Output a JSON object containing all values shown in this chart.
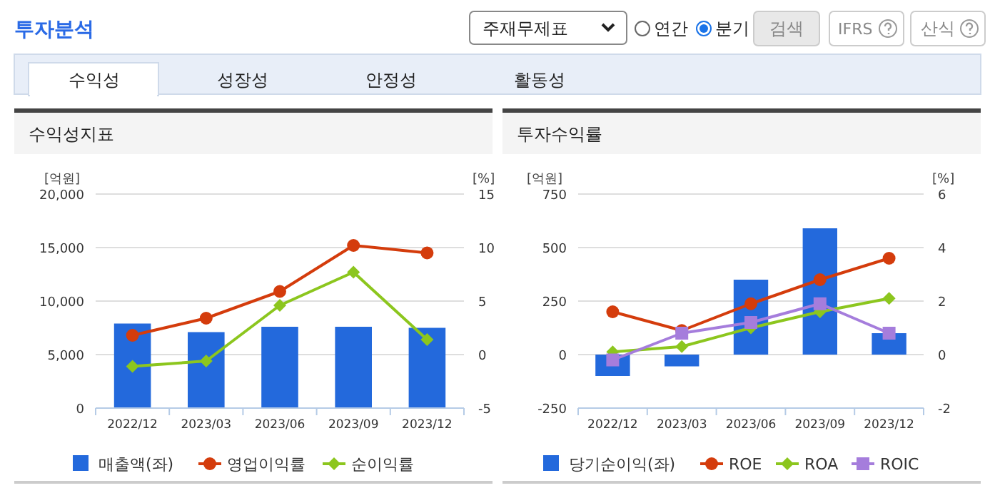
{
  "chart_data": [
    {
      "type": "other",
      "title": "투자분석",
      "annotations": [
        "주재무제표",
        "연간",
        "분기",
        "검색",
        "IFRS",
        "산식",
        "수익성",
        "성장성",
        "안정성",
        "활동성"
      ]
    },
    {
      "type": "bar",
      "title": "수익성지표",
      "ylabel": "[억원]",
      "y2label": "[%]",
      "categories": [
        "2022/12",
        "2023/03",
        "2023/06",
        "2023/09",
        "2023/12"
      ],
      "series": [
        {
          "name": "매출액(좌)",
          "type": "bar",
          "color": "#2369dc",
          "values": [
            7900,
            7100,
            7600,
            7600,
            7500
          ]
        },
        {
          "name": "영업이익률",
          "type": "line",
          "axis": "y2",
          "marker": "circle",
          "color": "#d43c0c",
          "values": [
            1.8,
            3.4,
            5.9,
            10.2,
            9.5
          ]
        },
        {
          "name": "순이익률",
          "type": "line",
          "axis": "y2",
          "marker": "diamond",
          "color": "#8cc61e",
          "values": [
            -1.1,
            -0.6,
            4.6,
            7.7,
            1.4
          ]
        }
      ],
      "ylim": [
        0,
        20000
      ],
      "yticks": [
        0,
        {
          "value": 5000,
          "label": "5,000"
        },
        {
          "value": 10000,
          "label": "10,000"
        },
        {
          "value": 15000,
          "label": "15,000"
        },
        {
          "value": 20000,
          "label": "20,000"
        }
      ],
      "y2lim": [
        -5,
        15
      ],
      "y2ticks": [
        -5,
        0,
        5,
        10,
        15
      ],
      "grid": "y",
      "legend": "bottom"
    },
    {
      "type": "bar",
      "title": "투자수익률",
      "ylabel": "[억원]",
      "y2label": "[%]",
      "categories": [
        "2022/12",
        "2023/03",
        "2023/06",
        "2023/09",
        "2023/12"
      ],
      "series": [
        {
          "name": "당기순이익(좌)",
          "type": "bar",
          "color": "#2369dc",
          "values": [
            -100,
            -55,
            350,
            590,
            100
          ]
        },
        {
          "name": "ROE",
          "type": "line",
          "axis": "y2",
          "marker": "circle",
          "color": "#d43c0c",
          "values": [
            1.6,
            0.9,
            1.9,
            2.8,
            3.6
          ]
        },
        {
          "name": "ROA",
          "type": "line",
          "axis": "y2",
          "marker": "diamond",
          "color": "#8cc61e",
          "values": [
            0.1,
            0.3,
            1.0,
            1.6,
            2.1
          ]
        },
        {
          "name": "ROIC",
          "type": "line",
          "axis": "y2",
          "marker": "square",
          "color": "#a57ddc",
          "values": [
            -0.2,
            0.8,
            1.2,
            1.9,
            0.8
          ]
        }
      ],
      "ylim": [
        -250,
        750
      ],
      "yticks": [
        -250,
        0,
        250,
        500,
        750
      ],
      "y2lim": [
        -2,
        6
      ],
      "y2ticks": [
        -2,
        0,
        2,
        4,
        6
      ],
      "grid": "y",
      "legend": "bottom"
    }
  ]
}
